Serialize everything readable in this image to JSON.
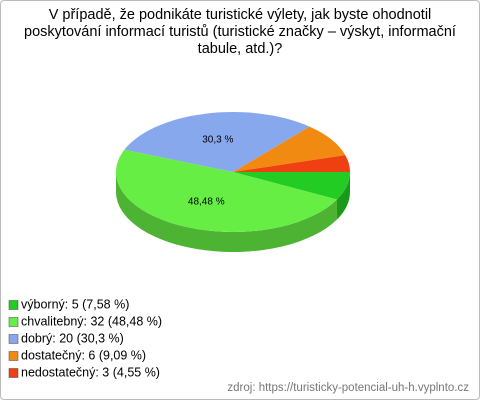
{
  "chart_data": {
    "type": "pie3d",
    "title": "V případě, že podnikáte turistické výlety, jak byste ohodnotil poskytování informací turistů (turistické značky – výskyt, informační tabule, atd.)?",
    "categories": [
      "výborný: 5 (7,58 %)",
      "chvalitebný: 32 (48,48 %)",
      "dobrý: 20 (30,3 %)",
      "dostatečný: 6 (9,09 %)",
      "nedostatečný: 3 (4,55 %)"
    ],
    "values": [
      7.58,
      48.48,
      30.3,
      9.09,
      4.55
    ],
    "value_labels": [
      null,
      "48,48 %",
      "30,3 %",
      null,
      null
    ],
    "colors": [
      "#22cc22",
      "#66ee44",
      "#88a8ee",
      "#f08a10",
      "#ee4010"
    ],
    "source": "zdroj: https://turisticky-potencial-uh-h.vyplnto.cz"
  }
}
